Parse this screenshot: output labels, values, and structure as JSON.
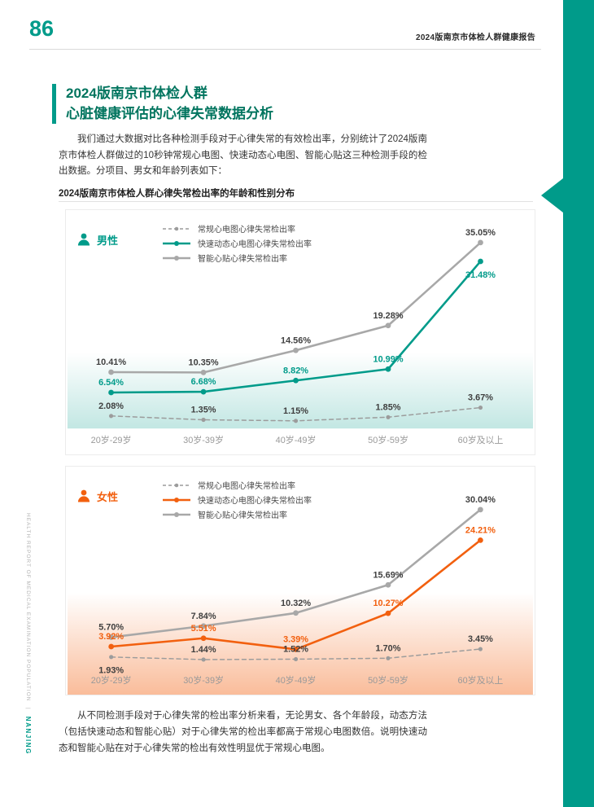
{
  "page": {
    "number": "86",
    "header": "2024版南京市体检人群健康报告",
    "side_text": "HEALTH REPORT OF MEDICAL EXAMINATION POPULATION",
    "side_sep": "|",
    "side_brand": "NANJING"
  },
  "title": {
    "line1": "2024版南京市体检人群",
    "line2": "心脏健康评估的心律失常数据分析"
  },
  "intro": "我们通过大数据对比各种检测手段对于心律失常的有效检出率，分别统计了2024版南京市体检人群做过的10秒钟常规心电图、快速动态心电图、智能心贴这三种检测手段的检出数据。分项目、男女和年龄列表如下：",
  "section_subtitle": "2024版南京市体检人群心律失常检出率的年龄和性别分布",
  "conclusion": "从不同检测手段对于心律失常的检出率分析来看，无论男女、各个年龄段，动态方法（包括快速动态和智能心贴）对于心律失常的检出率都高于常规心电图数倍。说明快速动态和智能心贴在对于心律失常的检出有效性明显优于常规心电图。",
  "colors": {
    "teal": "#009B8A",
    "orange": "#F2600F",
    "gray_line": "#A8A8A8",
    "dashed_line": "#9C9C9C",
    "label_dark": "#3F3F3F",
    "axis_label": "#999999"
  },
  "chart_data": [
    {
      "type": "line",
      "gender_label": "男性",
      "accent_color": "#009B8A",
      "categories": [
        "20岁-29岁",
        "30岁-39岁",
        "40岁-49岁",
        "50岁-59岁",
        "60岁及以上"
      ],
      "ylim": [
        0,
        36
      ],
      "grid": false,
      "legend_position": "top-left",
      "unit": "%",
      "series": [
        {
          "name": "常规心电图心律失常检出率",
          "style": "dashed",
          "color": "#9C9C9C",
          "label_color": "#3F3F3F",
          "values": [
            2.08,
            1.35,
            1.15,
            1.85,
            3.67
          ],
          "label_pos": [
            "above",
            "above",
            "above",
            "above",
            "above"
          ]
        },
        {
          "name": "快速动态心电图心律失常检出率",
          "style": "solid",
          "color": "#009B8A",
          "label_color": "#009B8A",
          "values": [
            6.54,
            6.68,
            8.82,
            10.99,
            31.48
          ],
          "label_pos": [
            "above",
            "above",
            "above",
            "above",
            "below"
          ]
        },
        {
          "name": "智能心贴心律失常检出率",
          "style": "solid",
          "color": "#A8A8A8",
          "label_color": "#3F3F3F",
          "values": [
            10.41,
            10.35,
            14.56,
            19.28,
            35.05
          ],
          "label_pos": [
            "above",
            "above",
            "above",
            "above",
            "above"
          ]
        }
      ]
    },
    {
      "type": "line",
      "gender_label": "女性",
      "accent_color": "#F2600F",
      "categories": [
        "20岁-29岁",
        "30岁-39岁",
        "40岁-49岁",
        "50岁-59岁",
        "60岁及以上"
      ],
      "ylim": [
        0,
        33
      ],
      "grid": false,
      "legend_position": "top-left",
      "unit": "%",
      "series": [
        {
          "name": "常规心电图心律失常检出率",
          "style": "dashed",
          "color": "#9C9C9C",
          "label_color": "#3F3F3F",
          "values": [
            1.93,
            1.44,
            1.52,
            1.7,
            3.45
          ],
          "label_pos": [
            "below",
            "above",
            "above",
            "above",
            "above"
          ]
        },
        {
          "name": "快速动态心电图心律失常检出率",
          "style": "solid",
          "color": "#F2600F",
          "label_color": "#F2600F",
          "values": [
            3.92,
            5.51,
            3.39,
            10.27,
            24.21
          ],
          "label_pos": [
            "above",
            "above",
            "above",
            "above",
            "above"
          ]
        },
        {
          "name": "智能心贴心律失常检出率",
          "style": "solid",
          "color": "#A8A8A8",
          "label_color": "#3F3F3F",
          "values": [
            5.7,
            7.84,
            10.32,
            15.69,
            30.04
          ],
          "label_pos": [
            "above",
            "above",
            "above",
            "above",
            "above"
          ]
        }
      ]
    }
  ]
}
